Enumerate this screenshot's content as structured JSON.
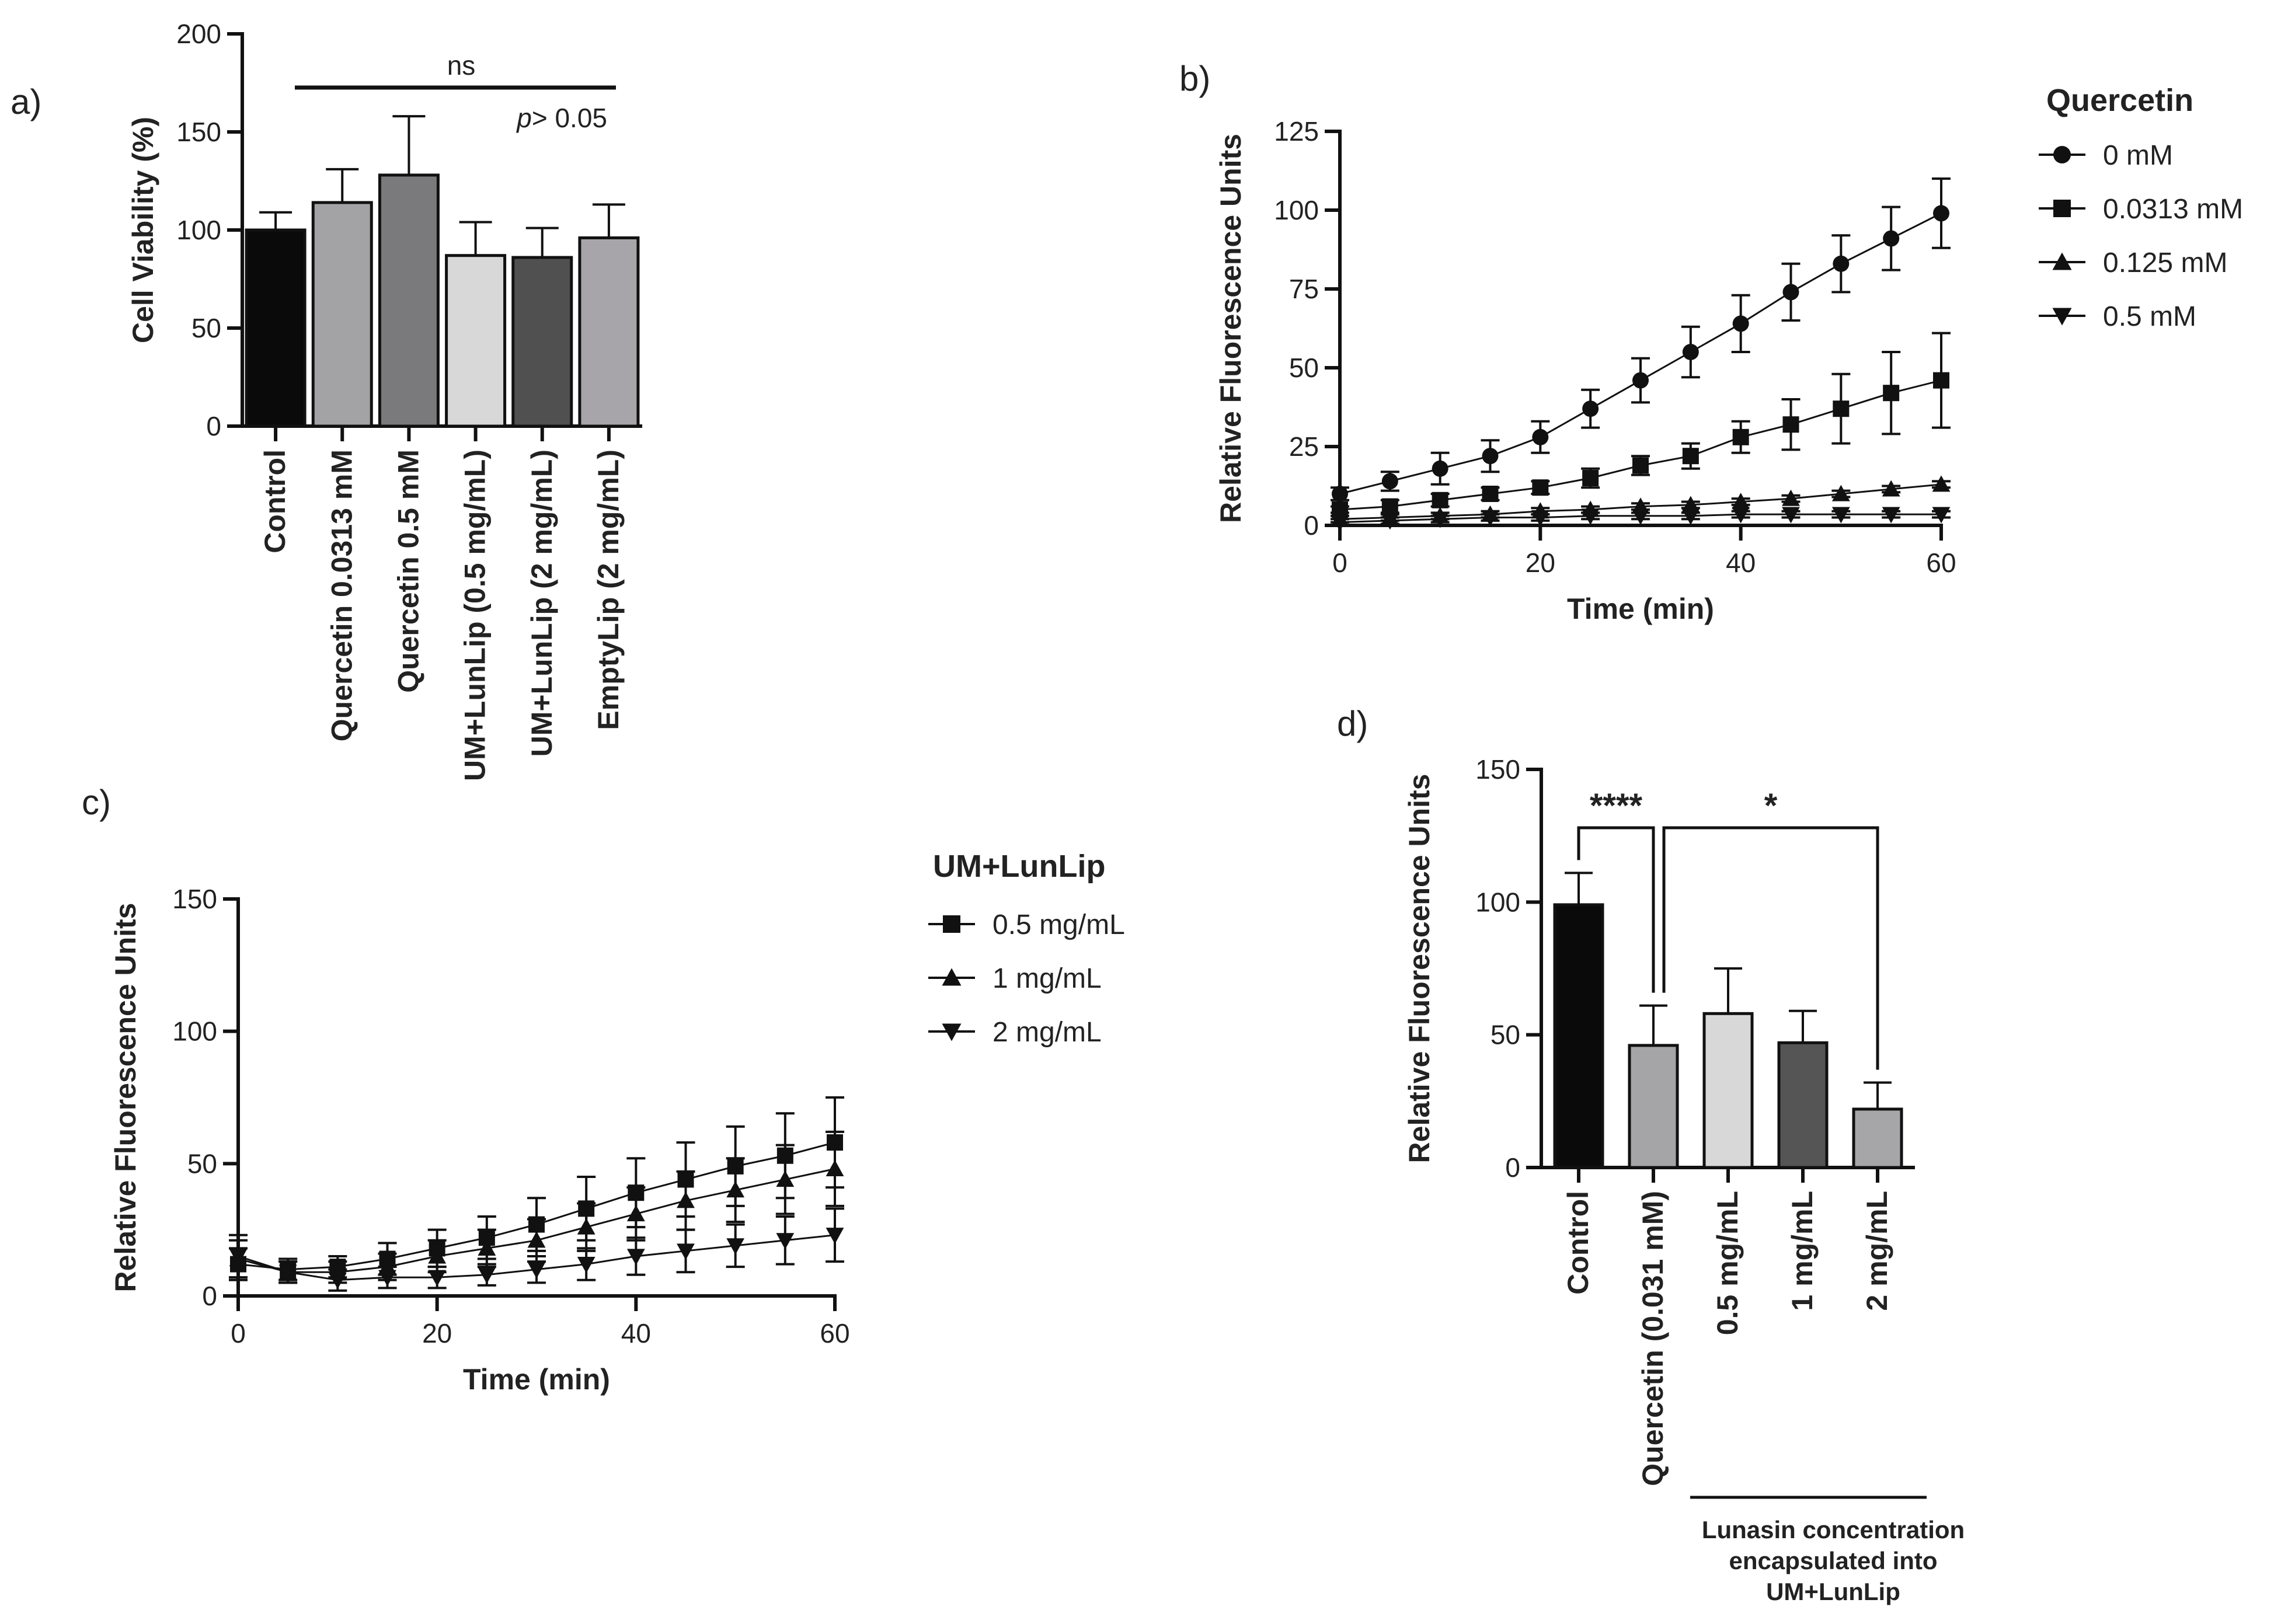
{
  "chart_data": [
    {
      "id": "a",
      "panel_label": "a)",
      "type": "bar",
      "ylabel": "Cell Viability (%)",
      "xlabel": "",
      "ylim": [
        0,
        200
      ],
      "yticks": [
        0,
        50,
        100,
        150,
        200
      ],
      "categories": [
        "Control",
        "Quercetin 0.0313 mM",
        "Quercetin 0.5 mM",
        "UM+LunLip (0.5 mg/mL)",
        "UM+LunLip (2 mg/mL)",
        "EmptyLip (2 mg/mL)"
      ],
      "values": [
        100,
        114,
        128,
        87,
        86,
        96
      ],
      "errors": [
        9,
        17,
        30,
        17,
        15,
        17
      ],
      "colors": [
        "#0a0a0a",
        "#a3a3a6",
        "#7a7a7c",
        "#d8d8d8",
        "#505050",
        "#a7a5a9"
      ],
      "annotation": {
        "label": "ns",
        "p_italic": "p",
        "p_text": "> 0.05"
      }
    },
    {
      "id": "b",
      "panel_label": "b)",
      "type": "line",
      "ylabel": "Relative Fluorescence Units",
      "xlabel": "Time (min)",
      "xlim": [
        0,
        60
      ],
      "ylim": [
        0,
        125
      ],
      "xticks": [
        0,
        20,
        40,
        60
      ],
      "yticks": [
        0,
        25,
        50,
        75,
        100,
        125
      ],
      "legend_title": "Quercetin",
      "x": [
        0,
        5,
        10,
        15,
        20,
        25,
        30,
        35,
        40,
        45,
        50,
        55,
        60
      ],
      "series": [
        {
          "name": "0 mM",
          "marker": "circle",
          "values": [
            10,
            14,
            18,
            22,
            28,
            37,
            46,
            55,
            64,
            74,
            83,
            91,
            99
          ],
          "errors": [
            2,
            3,
            5,
            5,
            5,
            6,
            7,
            8,
            9,
            9,
            9,
            10,
            11
          ]
        },
        {
          "name": "0.0313 mM",
          "marker": "square",
          "values": [
            5,
            6,
            8,
            10,
            12,
            15,
            19,
            22,
            28,
            32,
            37,
            42,
            46
          ],
          "errors": [
            1,
            2,
            2,
            2,
            2,
            3,
            3,
            4,
            5,
            8,
            11,
            13,
            15
          ]
        },
        {
          "name": "0.125 mM",
          "marker": "triangle-up",
          "values": [
            2,
            2.5,
            3,
            3.5,
            4.5,
            5,
            6,
            6.5,
            7.5,
            8.5,
            10,
            11.5,
            13
          ],
          "errors": [
            1,
            1,
            1,
            1,
            1,
            1,
            1,
            1,
            1,
            1,
            1,
            1,
            1
          ]
        },
        {
          "name": "0.5 mM",
          "marker": "triangle-down",
          "values": [
            1,
            1.5,
            2,
            2.5,
            2.5,
            3,
            3,
            3,
            3.5,
            3.5,
            3.5,
            3.5,
            3.5
          ],
          "errors": [
            1,
            1,
            1,
            1,
            1,
            1,
            1,
            1,
            1,
            1,
            1,
            1,
            1
          ]
        }
      ]
    },
    {
      "id": "c",
      "panel_label": "c)",
      "type": "line",
      "ylabel": "Relative Fluorescence Units",
      "xlabel": "Time (min)",
      "xlim": [
        0,
        60
      ],
      "ylim": [
        0,
        150
      ],
      "xticks": [
        0,
        20,
        40,
        60
      ],
      "yticks": [
        0,
        50,
        100,
        150
      ],
      "legend_title": "UM+LunLip",
      "x": [
        0,
        5,
        10,
        15,
        20,
        25,
        30,
        35,
        40,
        45,
        50,
        55,
        60
      ],
      "series": [
        {
          "name": "0.5 mg/mL",
          "marker": "square",
          "values": [
            12,
            10,
            11,
            14,
            18,
            22,
            27,
            33,
            39,
            44,
            49,
            53,
            58
          ],
          "errors": [
            6,
            4,
            4,
            6,
            7,
            8,
            10,
            12,
            13,
            14,
            15,
            16,
            17
          ]
        },
        {
          "name": "1 mg/mL",
          "marker": "triangle-up",
          "values": [
            14,
            9,
            9,
            11,
            15,
            18,
            21,
            26,
            31,
            36,
            40,
            44,
            48
          ],
          "errors": [
            7,
            4,
            4,
            5,
            6,
            7,
            8,
            9,
            10,
            11,
            12,
            13,
            14
          ]
        },
        {
          "name": "2 mg/mL",
          "marker": "triangle-down",
          "values": [
            15,
            9,
            6,
            7,
            7,
            8,
            10,
            12,
            15,
            17,
            19,
            21,
            23
          ],
          "errors": [
            8,
            4,
            4,
            4,
            4,
            4,
            5,
            6,
            7,
            8,
            8,
            9,
            10
          ]
        }
      ]
    },
    {
      "id": "d",
      "panel_label": "d)",
      "type": "bar",
      "ylabel": "Relative Fluorescence Units",
      "xlabel": "",
      "ylim": [
        0,
        150
      ],
      "yticks": [
        0,
        50,
        100,
        150
      ],
      "categories": [
        "Control",
        "Quercetin (0.031 mM)",
        "0.5 mg/mL",
        "1 mg/mL",
        "2 mg/mL"
      ],
      "values": [
        99,
        46,
        58,
        47,
        22
      ],
      "errors": [
        12,
        15,
        17,
        12,
        10
      ],
      "colors": [
        "#0a0a0a",
        "#a5a5a8",
        "#d8d8d8",
        "#555555",
        "#a6a6a8"
      ],
      "significance": [
        {
          "label": "****",
          "from": 0,
          "to": 1
        },
        {
          "label": "*",
          "from": 1,
          "to": 4
        }
      ],
      "footnote": [
        "Lunasin concentration",
        "encapsulated into",
        "UM+LunLip"
      ]
    }
  ]
}
